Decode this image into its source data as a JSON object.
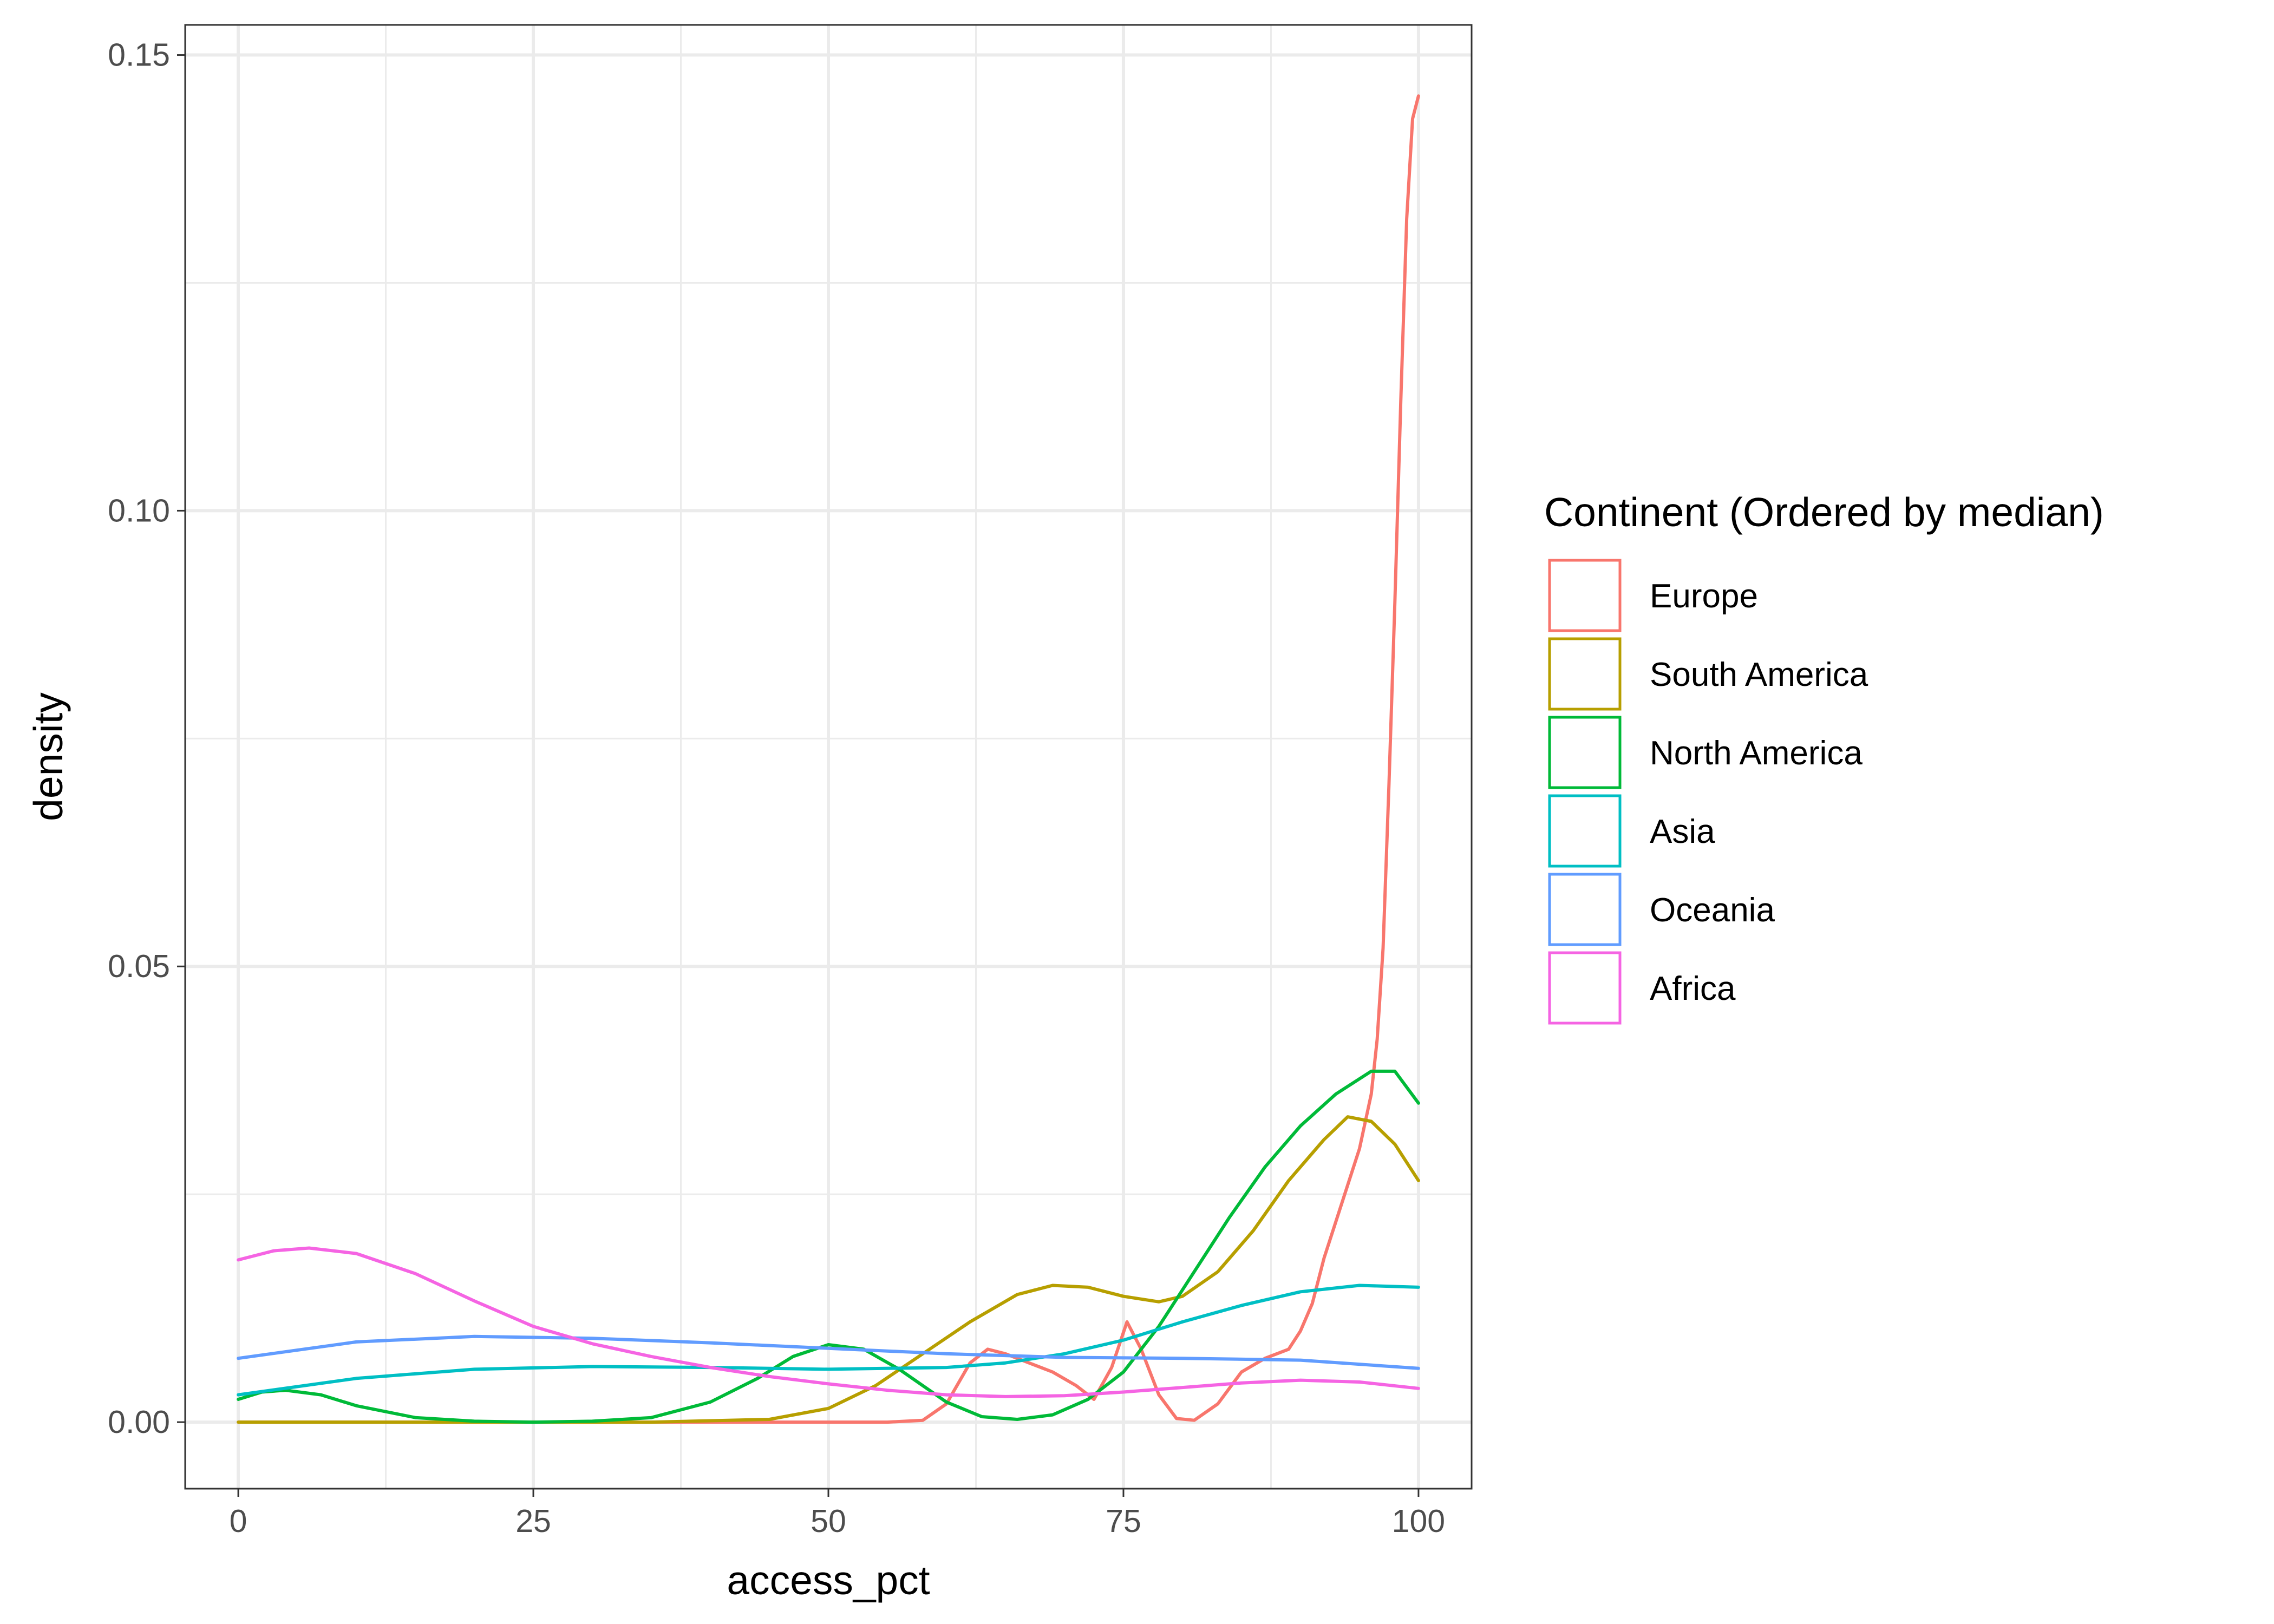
{
  "chart_data": {
    "type": "line",
    "title": "",
    "xlabel": "access_pct",
    "ylabel": "density",
    "xlim": [
      -4.5,
      104.5
    ],
    "ylim": [
      -0.0073,
      0.1533
    ],
    "xticks": [
      0,
      25,
      50,
      75,
      100
    ],
    "xtick_labels": [
      "0",
      "25",
      "50",
      "75",
      "100"
    ],
    "yticks": [
      0.0,
      0.05,
      0.1,
      0.15
    ],
    "ytick_labels": [
      "0.00",
      "0.05",
      "0.10",
      "0.15"
    ],
    "grid": true,
    "legend_title": "Continent (Ordered by median)",
    "legend_position": "right",
    "series": [
      {
        "name": "Europe",
        "color": "#F8766D",
        "x": [
          0,
          55,
          58,
          60,
          62,
          63.5,
          65,
          67,
          69,
          71,
          72.5,
          74,
          75.3,
          76.5,
          78,
          79.5,
          81,
          83,
          85,
          87,
          89,
          90,
          91,
          92,
          93,
          94,
          95,
          96,
          96.5,
          97,
          97.5,
          98,
          98.5,
          99,
          99.5,
          100
        ],
        "y": [
          0,
          0,
          0.0002,
          0.002,
          0.0065,
          0.008,
          0.0075,
          0.0065,
          0.0055,
          0.004,
          0.0025,
          0.006,
          0.011,
          0.008,
          0.003,
          0.0004,
          0.0002,
          0.002,
          0.0055,
          0.007,
          0.008,
          0.01,
          0.013,
          0.018,
          0.022,
          0.026,
          0.03,
          0.036,
          0.042,
          0.052,
          0.07,
          0.09,
          0.112,
          0.132,
          0.143,
          0.1455
        ]
      },
      {
        "name": "South America",
        "color": "#B79F00",
        "x": [
          0,
          35,
          45,
          50,
          54,
          58,
          62,
          66,
          69,
          72,
          75,
          78,
          80,
          83,
          86,
          89,
          92,
          94,
          96,
          98,
          100
        ],
        "y": [
          0,
          0,
          0.0003,
          0.0015,
          0.004,
          0.0075,
          0.011,
          0.014,
          0.015,
          0.0148,
          0.0138,
          0.0132,
          0.0138,
          0.0165,
          0.021,
          0.0265,
          0.031,
          0.0335,
          0.033,
          0.0305,
          0.0265
        ]
      },
      {
        "name": "North America",
        "color": "#00BA38",
        "x": [
          0,
          2,
          4,
          7,
          10,
          15,
          20,
          25,
          30,
          35,
          40,
          44,
          47,
          50,
          53,
          56,
          60,
          63,
          66,
          69,
          72,
          75,
          78,
          81,
          84,
          87,
          90,
          93,
          96,
          98,
          100
        ],
        "y": [
          0.0025,
          0.0033,
          0.0035,
          0.003,
          0.0018,
          0.0005,
          0.0001,
          0,
          0.0001,
          0.0005,
          0.0022,
          0.0048,
          0.0072,
          0.0085,
          0.008,
          0.0058,
          0.0022,
          0.0006,
          0.0003,
          0.0008,
          0.0025,
          0.0055,
          0.0105,
          0.0165,
          0.0225,
          0.028,
          0.0325,
          0.036,
          0.0385,
          0.0385,
          0.035
        ]
      },
      {
        "name": "Asia",
        "color": "#00BFC4",
        "x": [
          0,
          10,
          20,
          30,
          40,
          50,
          60,
          65,
          70,
          75,
          80,
          85,
          90,
          95,
          100
        ],
        "y": [
          0.003,
          0.0048,
          0.0058,
          0.0061,
          0.006,
          0.0058,
          0.006,
          0.0065,
          0.0075,
          0.009,
          0.011,
          0.0128,
          0.0143,
          0.015,
          0.0148
        ]
      },
      {
        "name": "Oceania",
        "color": "#619CFF",
        "x": [
          0,
          10,
          20,
          30,
          40,
          50,
          60,
          70,
          80,
          90,
          100
        ],
        "y": [
          0.007,
          0.0088,
          0.0094,
          0.0092,
          0.0087,
          0.0081,
          0.0075,
          0.0071,
          0.007,
          0.0068,
          0.0059
        ]
      },
      {
        "name": "Africa",
        "color": "#F564E3",
        "x": [
          0,
          3,
          6,
          10,
          15,
          20,
          25,
          30,
          35,
          40,
          45,
          50,
          55,
          60,
          65,
          70,
          75,
          80,
          85,
          90,
          95,
          100
        ],
        "y": [
          0.0178,
          0.0188,
          0.0191,
          0.0185,
          0.0163,
          0.0133,
          0.0105,
          0.0086,
          0.0072,
          0.006,
          0.005,
          0.0042,
          0.0035,
          0.003,
          0.0028,
          0.0029,
          0.0033,
          0.0038,
          0.0043,
          0.0046,
          0.0044,
          0.0037
        ]
      }
    ]
  }
}
